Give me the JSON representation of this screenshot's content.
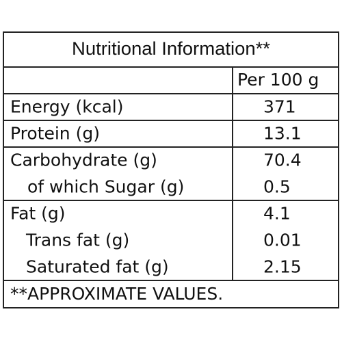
{
  "title": "Nutritional Information**",
  "header": {
    "column": "Per 100 g"
  },
  "groups": [
    {
      "rows": [
        {
          "label": "Energy (kcal)",
          "value": "371"
        }
      ]
    },
    {
      "rows": [
        {
          "label": "Protein (g)",
          "value": "13.1"
        }
      ]
    },
    {
      "rows": [
        {
          "label": "Carbohydrate (g)",
          "value": "70.4"
        },
        {
          "label": "of which Sugar (g)",
          "value": "0.5"
        }
      ]
    },
    {
      "rows": [
        {
          "label": "Fat (g)",
          "value": "4.1"
        },
        {
          "label": "Trans fat (g)",
          "value": "0.01"
        },
        {
          "label": "Saturated fat (g)",
          "value": "2.15"
        }
      ]
    }
  ],
  "footnote": "**APPROXIMATE VALUES."
}
